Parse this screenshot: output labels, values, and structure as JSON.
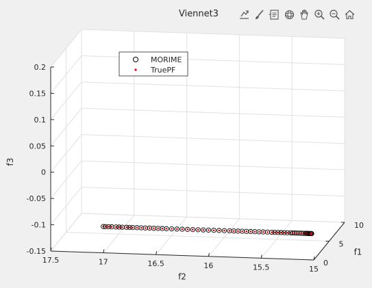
{
  "toolbar": {
    "icons": [
      "export-icon",
      "brush-icon",
      "data-tips-icon",
      "rotate-3d-icon",
      "pan-hand-icon",
      "zoom-in-icon",
      "zoom-out-icon",
      "home-icon"
    ]
  },
  "colors": {
    "axes_bg": "#ffffff",
    "figure_bg": "#f0f0f0",
    "grid": "#e1e1e1",
    "marker_morime": "#000000",
    "marker_truepf": "#e00000"
  },
  "chart_data": {
    "type": "scatter",
    "title": "Viennet3",
    "xlabel": "f1",
    "ylabel": "f2",
    "zlabel": "f3",
    "view": "3d",
    "grid": true,
    "legend_position": "top-left",
    "xlim": [
      0,
      10
    ],
    "ylim": [
      15,
      17.5
    ],
    "zlim": [
      -0.15,
      0.2
    ],
    "x_ticks": [
      "0",
      "5",
      "10"
    ],
    "y_ticks": [
      "15",
      "15.5",
      "16",
      "16.5",
      "17",
      "17.5"
    ],
    "z_ticks": [
      "-0.15",
      "-0.1",
      "-0.05",
      "0",
      "0.05",
      "0.1",
      "0.15",
      "0.2"
    ],
    "legend": [
      "MORIME",
      "TruePF"
    ],
    "series": [
      {
        "name": "MORIME",
        "marker": "circle-open",
        "points": [
          [
            0.0,
            17.0,
            -0.1
          ],
          [
            0.0,
            16.98,
            -0.1
          ],
          [
            0.0,
            16.95,
            -0.1
          ],
          [
            0.0,
            16.92,
            -0.1
          ],
          [
            0.0,
            16.88,
            -0.1
          ],
          [
            0.0,
            16.85,
            -0.1
          ],
          [
            0.0,
            16.82,
            -0.1
          ],
          [
            0.0,
            16.78,
            -0.1
          ],
          [
            0.0,
            16.75,
            -0.1
          ],
          [
            0.0,
            16.72,
            -0.1
          ],
          [
            0.0,
            16.68,
            -0.1
          ],
          [
            0.0,
            16.64,
            -0.1
          ],
          [
            0.0,
            16.6,
            -0.1
          ],
          [
            0.0,
            16.56,
            -0.1
          ],
          [
            0.0,
            16.52,
            -0.1
          ],
          [
            0.0,
            16.48,
            -0.1
          ],
          [
            0.0,
            16.44,
            -0.1
          ],
          [
            0.0,
            16.4,
            -0.1
          ],
          [
            0.0,
            16.35,
            -0.1
          ],
          [
            0.0,
            16.3,
            -0.1
          ],
          [
            0.0,
            16.25,
            -0.1
          ],
          [
            0.0,
            16.2,
            -0.1
          ],
          [
            0.0,
            16.15,
            -0.1
          ],
          [
            0.0,
            16.1,
            -0.1
          ],
          [
            0.0,
            16.05,
            -0.1
          ],
          [
            0.0,
            16.0,
            -0.1
          ],
          [
            0.0,
            15.95,
            -0.1
          ],
          [
            0.0,
            15.9,
            -0.1
          ],
          [
            0.0,
            15.85,
            -0.1
          ],
          [
            0.0,
            15.8,
            -0.1
          ],
          [
            0.0,
            15.76,
            -0.1
          ],
          [
            0.0,
            15.72,
            -0.1
          ],
          [
            0.0,
            15.68,
            -0.1
          ],
          [
            0.0,
            15.64,
            -0.1
          ],
          [
            0.0,
            15.6,
            -0.1
          ],
          [
            0.0,
            15.56,
            -0.1
          ],
          [
            0.0,
            15.52,
            -0.1
          ],
          [
            0.0,
            15.48,
            -0.1
          ],
          [
            0.0,
            15.44,
            -0.1
          ],
          [
            0.0,
            15.4,
            -0.1
          ],
          [
            0.0,
            15.37,
            -0.1
          ],
          [
            0.0,
            15.34,
            -0.1
          ],
          [
            0.0,
            15.31,
            -0.1
          ],
          [
            0.0,
            15.28,
            -0.1
          ],
          [
            0.0,
            15.25,
            -0.1
          ],
          [
            0.0,
            15.22,
            -0.1
          ],
          [
            0.0,
            15.2,
            -0.1
          ],
          [
            0.0,
            15.18,
            -0.1
          ],
          [
            0.0,
            15.16,
            -0.1
          ],
          [
            0.0,
            15.14,
            -0.1
          ],
          [
            0.0,
            15.12,
            -0.1
          ],
          [
            0.0,
            15.1,
            -0.1
          ],
          [
            0.0,
            15.08,
            -0.1
          ],
          [
            0.0,
            15.07,
            -0.1
          ],
          [
            0.0,
            15.06,
            -0.1
          ],
          [
            0.0,
            15.05,
            -0.1
          ],
          [
            0.0,
            15.04,
            -0.1
          ],
          [
            0.0,
            15.03,
            -0.1
          ],
          [
            0.0,
            15.025,
            -0.1
          ],
          [
            0.0,
            15.02,
            -0.1
          ]
        ]
      },
      {
        "name": "TruePF",
        "marker": "dot",
        "points": []
      }
    ]
  }
}
